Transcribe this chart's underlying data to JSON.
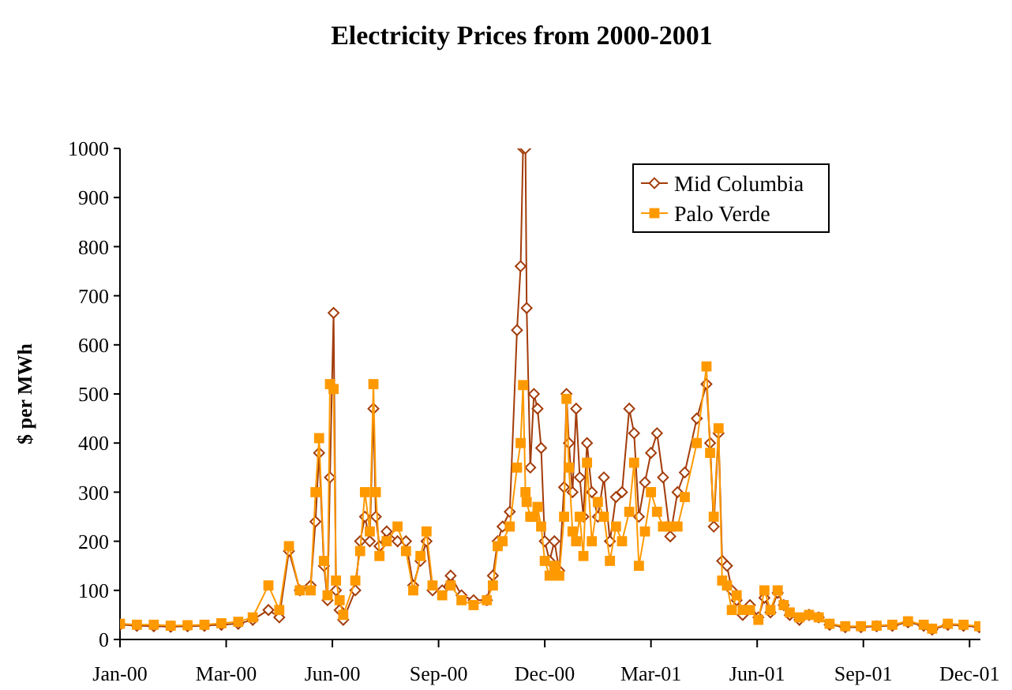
{
  "chart_data": {
    "type": "line",
    "title": "Electricity Prices from 2000-2001",
    "ylabel": "$ per MWh",
    "x": [
      "2000-01-01",
      "2000-01-15",
      "2000-01-29",
      "2000-02-12",
      "2000-02-26",
      "2000-03-11",
      "2000-03-25",
      "2000-04-08",
      "2000-04-20",
      "2000-05-03",
      "2000-05-12",
      "2000-05-20",
      "2000-05-29",
      "2000-06-07",
      "2000-06-11",
      "2000-06-14",
      "2000-06-18",
      "2000-06-21",
      "2000-06-23",
      "2000-06-26",
      "2000-06-28",
      "2000-07-01",
      "2000-07-04",
      "2000-07-14",
      "2000-07-18",
      "2000-07-22",
      "2000-07-26",
      "2000-07-29",
      "2000-07-31",
      "2000-08-03",
      "2000-08-09",
      "2000-08-18",
      "2000-08-25",
      "2000-08-31",
      "2000-09-06",
      "2000-09-11",
      "2000-09-16",
      "2000-09-24",
      "2000-10-01",
      "2000-10-10",
      "2000-10-20",
      "2000-10-31",
      "2000-11-05",
      "2000-11-09",
      "2000-11-13",
      "2000-11-19",
      "2000-11-25",
      "2000-11-28",
      "2000-11-30",
      "2000-12-02",
      "2000-12-03",
      "2000-12-06",
      "2000-12-09",
      "2000-12-12",
      "2000-12-15",
      "2000-12-18",
      "2000-12-22",
      "2000-12-26",
      "2000-12-30",
      "2001-01-03",
      "2001-01-05",
      "2001-01-07",
      "2001-01-10",
      "2001-01-13",
      "2001-01-16",
      "2001-01-19",
      "2001-01-22",
      "2001-01-26",
      "2001-01-31",
      "2001-02-05",
      "2001-02-10",
      "2001-02-15",
      "2001-02-20",
      "2001-02-26",
      "2001-03-02",
      "2001-03-06",
      "2001-03-11",
      "2001-03-16",
      "2001-03-21",
      "2001-03-26",
      "2001-04-01",
      "2001-04-07",
      "2001-04-13",
      "2001-04-23",
      "2001-05-01",
      "2001-05-04",
      "2001-05-07",
      "2001-05-11",
      "2001-05-14",
      "2001-05-18",
      "2001-05-22",
      "2001-05-26",
      "2001-05-31",
      "2001-06-06",
      "2001-06-13",
      "2001-06-18",
      "2001-06-23",
      "2001-06-29",
      "2001-07-04",
      "2001-07-09",
      "2001-07-17",
      "2001-07-25",
      "2001-08-02",
      "2001-08-11",
      "2001-08-24",
      "2001-09-06",
      "2001-09-19",
      "2001-10-02",
      "2001-10-15",
      "2001-10-28",
      "2001-11-04",
      "2001-11-17",
      "2001-11-30",
      "2001-12-13"
    ],
    "series": [
      {
        "name": "Mid Columbia",
        "color": "#a33c0a",
        "marker": "diamond",
        "values": [
          30,
          28,
          27,
          26,
          27,
          28,
          30,
          32,
          40,
          60,
          45,
          180,
          100,
          110,
          240,
          380,
          150,
          80,
          330,
          665,
          100,
          60,
          40,
          100,
          200,
          250,
          200,
          470,
          250,
          190,
          220,
          200,
          200,
          110,
          160,
          200,
          100,
          100,
          130,
          90,
          80,
          80,
          130,
          200,
          230,
          260,
          630,
          760,
          1000,
          1000,
          675,
          350,
          500,
          470,
          390,
          200,
          160,
          200,
          140,
          310,
          500,
          400,
          300,
          470,
          330,
          250,
          400,
          300,
          250,
          330,
          200,
          290,
          300,
          470,
          420,
          250,
          320,
          380,
          420,
          330,
          210,
          300,
          340,
          450,
          520,
          400,
          230,
          420,
          160,
          150,
          100,
          80,
          50,
          70,
          45,
          85,
          55,
          95,
          70,
          50,
          40,
          50,
          45,
          30,
          25,
          25,
          27,
          28,
          35,
          28,
          20,
          30,
          28,
          25
        ]
      },
      {
        "name": "Palo Verde",
        "color": "#ff9900",
        "marker": "square",
        "values": [
          32,
          30,
          30,
          28,
          29,
          30,
          33,
          36,
          45,
          110,
          60,
          190,
          100,
          100,
          300,
          410,
          160,
          90,
          520,
          510,
          120,
          80,
          50,
          120,
          180,
          300,
          220,
          520,
          300,
          170,
          200,
          230,
          180,
          100,
          170,
          220,
          110,
          90,
          110,
          80,
          70,
          80,
          110,
          190,
          200,
          230,
          350,
          400,
          518,
          300,
          280,
          250,
          250,
          270,
          230,
          160,
          130,
          150,
          130,
          250,
          490,
          350,
          220,
          200,
          250,
          170,
          360,
          200,
          280,
          250,
          160,
          230,
          200,
          260,
          360,
          150,
          220,
          300,
          260,
          230,
          230,
          230,
          290,
          400,
          556,
          380,
          250,
          430,
          120,
          110,
          60,
          90,
          60,
          60,
          40,
          100,
          60,
          100,
          70,
          55,
          45,
          50,
          45,
          32,
          27,
          27,
          28,
          30,
          37,
          30,
          22,
          32,
          30,
          27
        ]
      }
    ],
    "xlim": [
      "2000-01-01",
      "2001-12-14"
    ],
    "xticks": [
      {
        "value": "2000-01-01",
        "label": "Jan-00"
      },
      {
        "value": "2000-03-29",
        "label": "Mar-00"
      },
      {
        "value": "2000-06-25",
        "label": "Jun-00"
      },
      {
        "value": "2000-09-21",
        "label": "Sep-00"
      },
      {
        "value": "2000-12-18",
        "label": "Dec-00"
      },
      {
        "value": "2001-03-16",
        "label": "Mar-01"
      },
      {
        "value": "2001-06-12",
        "label": "Jun-01"
      },
      {
        "value": "2001-09-08",
        "label": "Sep-01"
      },
      {
        "value": "2001-12-05",
        "label": "Dec-01"
      }
    ],
    "ylim": [
      0,
      1000
    ],
    "yticks": [
      0,
      100,
      200,
      300,
      400,
      500,
      600,
      700,
      800,
      900,
      1000
    ],
    "legend": "top right",
    "grid": false,
    "line_style": "solid"
  }
}
